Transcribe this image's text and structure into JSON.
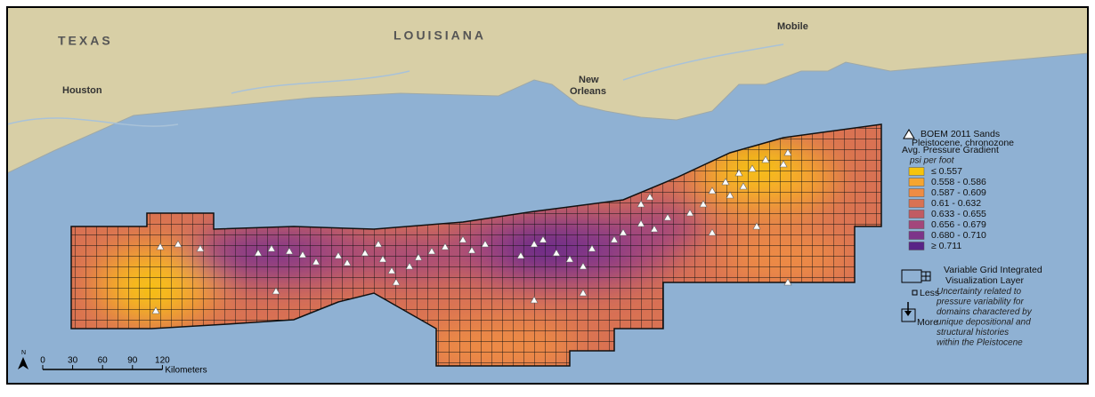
{
  "map": {
    "states": [
      "TEXAS",
      "LOUISIANA"
    ],
    "cities": [
      [
        "Houston"
      ],
      [
        "New",
        "Orleans"
      ],
      [
        "Mobile"
      ]
    ],
    "legend": {
      "points_title": "BOEM 2011 Sands",
      "points_subtitle": "Pleistocene, chronozone",
      "title": "Avg. Pressure Gradient",
      "unit": "psi per foot",
      "classes": [
        {
          "label": "≤ 0.557",
          "color": "#f6c40c"
        },
        {
          "label": "0.558 - 0.586",
          "color": "#f6a52f"
        },
        {
          "label": "0.587 - 0.609",
          "color": "#ee8c44"
        },
        {
          "label": "0.61 - 0.632",
          "color": "#d97253"
        },
        {
          "label": "0.633 - 0.655",
          "color": "#c15b63"
        },
        {
          "label": "0.656 - 0.679",
          "color": "#a3467b"
        },
        {
          "label": "0.680 - 0.710",
          "color": "#7d3489"
        },
        {
          "label": "≥ 0.711",
          "color": "#592387"
        }
      ],
      "grid_title": "Variable Grid Integrated Visualization Layer",
      "grid_note": "Uncertainty related to pressure variability for domains charactered by unique depositional and structural histories within the Pleistocene",
      "less": "Less",
      "more": "More"
    },
    "scale": {
      "ticks": [
        0,
        30,
        60,
        90,
        120
      ],
      "unit": "Kilometers"
    },
    "north": "N"
  }
}
